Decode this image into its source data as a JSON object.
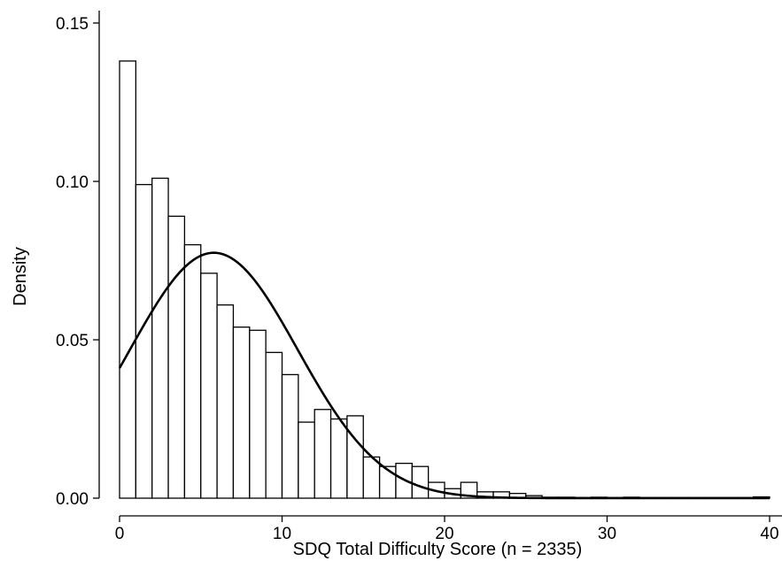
{
  "chart_data": {
    "type": "bar",
    "subtype": "histogram-with-normal-density",
    "xlabel": "SDQ Total Difficulty Score (n = 2335)",
    "ylabel": "Density",
    "xlim": [
      0,
      40
    ],
    "ylim": [
      0,
      0.15
    ],
    "x_ticks": [
      0,
      10,
      20,
      30,
      40
    ],
    "y_ticks": [
      0,
      0.05,
      0.1,
      0.15
    ],
    "x_tick_labels": [
      "0",
      "10",
      "20",
      "30",
      "40"
    ],
    "y_tick_labels": [
      "0.00",
      "0.05",
      "0.10",
      "0.15"
    ],
    "grid": false,
    "bin_width": 1,
    "bins_start": [
      0,
      1,
      2,
      3,
      4,
      5,
      6,
      7,
      8,
      9,
      10,
      11,
      12,
      13,
      14,
      15,
      16,
      17,
      18,
      19,
      20,
      21,
      22,
      23,
      24,
      25,
      26,
      27,
      28,
      29,
      30,
      31,
      32,
      33,
      34,
      35,
      36,
      37,
      38,
      39
    ],
    "values": [
      0.138,
      0.099,
      0.101,
      0.089,
      0.08,
      0.071,
      0.061,
      0.054,
      0.053,
      0.046,
      0.039,
      0.024,
      0.028,
      0.025,
      0.026,
      0.013,
      0.01,
      0.011,
      0.01,
      0.005,
      0.003,
      0.005,
      0.002,
      0.002,
      0.0015,
      0.0008,
      0.0003,
      0.0003,
      0.0002,
      0.0003,
      0.0002,
      0.0003,
      0.0002,
      0.0002,
      0.0002,
      0.0002,
      0.0002,
      0.0002,
      0.0002,
      0.0004
    ],
    "normal_curve": {
      "mean": 5.8,
      "sd": 5.15
    }
  }
}
